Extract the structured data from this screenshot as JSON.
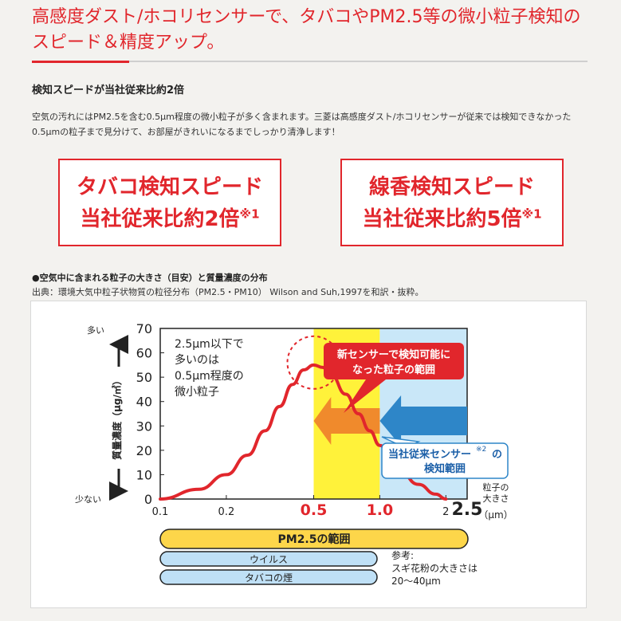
{
  "page": {
    "title": "高感度ダスト/ホコリセンサーで、タバコやPM2.5等の微小粒子検知のスピード＆精度アップ。",
    "subhead": "検知スピードが当社従来比約2倍",
    "body": "空気の汚れにはPM2.5を含む0.5μm程度の微小粒子が多く含まれます。三菱は高感度ダスト/ホコリセンサーが従来では検知できなかった0.5μmの粒子まで見分けて、お部屋がきれいになるまでしっかり清浄します！",
    "box1": {
      "line1": "タバコ検知スピード",
      "line2": "当社従来比約2倍",
      "note": "※1"
    },
    "box2": {
      "line1": "線香検知スピード",
      "line2": "当社従来比約5倍",
      "note": "※1"
    },
    "chart_title": "●空気中に含まれる粒子の大きさ（目安）と質量濃度の分布",
    "chart_source": "出典：環境大気中粒子状物質の粒径分布（PM2.5・PM10） Wilson and Suh,1997を和訳・抜粋。"
  },
  "colors": {
    "accent": "#e1262c",
    "yellow_band": "#fff23a",
    "blue_band": "#c9e7f8",
    "orange_arrow": "#f08a2c",
    "blue_arrow": "#2e86c8",
    "pm25_bar": "#fdd64a",
    "small_bar": "#bfe0f6"
  },
  "chart_data": {
    "type": "line",
    "xscale": "log",
    "x_ticks": [
      "0.1",
      "0.2",
      "0.5",
      "1.0",
      "2",
      "2.5"
    ],
    "y_ticks": [
      "0",
      "10",
      "20",
      "30",
      "40",
      "50",
      "60",
      "70"
    ],
    "xlim": [
      0.1,
      2.5
    ],
    "ylim": [
      0,
      70
    ],
    "ylabel": "質量濃度（μg/㎥）",
    "y_top_label": "多い",
    "y_bottom_label": "少ない",
    "xlabel": "粒子の大きさ（μm）",
    "curve": {
      "x": [
        0.1,
        0.15,
        0.2,
        0.25,
        0.3,
        0.35,
        0.4,
        0.45,
        0.5,
        0.55,
        0.6,
        0.7,
        0.8,
        0.9,
        1.0,
        1.2,
        1.5,
        1.8,
        2.0
      ],
      "y": [
        0,
        4,
        10,
        18,
        28,
        38,
        47,
        53,
        55,
        54,
        51,
        43,
        35,
        28,
        22,
        13,
        6,
        2,
        0
      ]
    },
    "annotation_peak": [
      "2.5μm以下で",
      "多いのは",
      "0.5μm程度の",
      "微小粒子"
    ],
    "callout_new": [
      "新センサーで検知可能に",
      "なった粒子の範囲"
    ],
    "callout_old": [
      "当社従来センサー",
      "※2",
      "の",
      "検知範囲"
    ],
    "yellow_range": [
      0.5,
      1.0
    ],
    "blue_range": [
      1.0,
      2.5
    ],
    "ranges": [
      {
        "label": "PM2.5の範囲",
        "from": 0.1,
        "to": 2.5
      },
      {
        "label": "ウイルス",
        "from": 0.1,
        "to": 1.3
      },
      {
        "label": "タバコの煙",
        "from": 0.1,
        "to": 1.3
      }
    ],
    "note": [
      "参考:",
      "スギ花粉の大きさは",
      "20〜40μm"
    ]
  }
}
